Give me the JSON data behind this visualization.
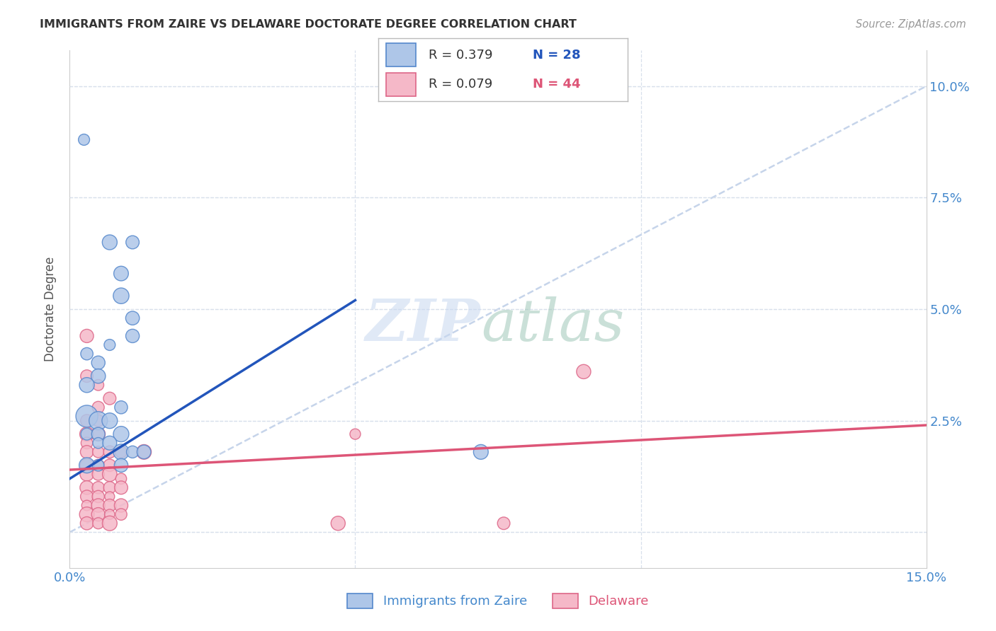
{
  "title": "IMMIGRANTS FROM ZAIRE VS DELAWARE DOCTORATE DEGREE CORRELATION CHART",
  "source": "Source: ZipAtlas.com",
  "ylabel_label": "Doctorate Degree",
  "legend_label_blue": "Immigrants from Zaire",
  "legend_label_pink": "Delaware",
  "legend_blue_r": "R = 0.379",
  "legend_blue_n": "N = 28",
  "legend_pink_r": "R = 0.079",
  "legend_pink_n": "N = 44",
  "xlim": [
    0.0,
    0.15
  ],
  "ylim": [
    -0.008,
    0.108
  ],
  "blue_scatter": [
    [
      0.0025,
      0.088
    ],
    [
      0.007,
      0.065
    ],
    [
      0.011,
      0.065
    ],
    [
      0.009,
      0.058
    ],
    [
      0.009,
      0.053
    ],
    [
      0.011,
      0.048
    ],
    [
      0.011,
      0.044
    ],
    [
      0.007,
      0.042
    ],
    [
      0.003,
      0.04
    ],
    [
      0.005,
      0.038
    ],
    [
      0.005,
      0.035
    ],
    [
      0.003,
      0.033
    ],
    [
      0.009,
      0.028
    ],
    [
      0.003,
      0.026
    ],
    [
      0.005,
      0.025
    ],
    [
      0.007,
      0.025
    ],
    [
      0.003,
      0.022
    ],
    [
      0.005,
      0.022
    ],
    [
      0.009,
      0.022
    ],
    [
      0.005,
      0.02
    ],
    [
      0.007,
      0.02
    ],
    [
      0.009,
      0.018
    ],
    [
      0.011,
      0.018
    ],
    [
      0.013,
      0.018
    ],
    [
      0.003,
      0.015
    ],
    [
      0.005,
      0.015
    ],
    [
      0.009,
      0.015
    ],
    [
      0.072,
      0.018
    ]
  ],
  "pink_scatter": [
    [
      0.003,
      0.044
    ],
    [
      0.003,
      0.035
    ],
    [
      0.005,
      0.033
    ],
    [
      0.007,
      0.03
    ],
    [
      0.005,
      0.028
    ],
    [
      0.003,
      0.025
    ],
    [
      0.005,
      0.025
    ],
    [
      0.003,
      0.022
    ],
    [
      0.005,
      0.022
    ],
    [
      0.003,
      0.02
    ],
    [
      0.003,
      0.018
    ],
    [
      0.005,
      0.018
    ],
    [
      0.007,
      0.018
    ],
    [
      0.009,
      0.018
    ],
    [
      0.003,
      0.015
    ],
    [
      0.005,
      0.015
    ],
    [
      0.007,
      0.015
    ],
    [
      0.003,
      0.013
    ],
    [
      0.005,
      0.013
    ],
    [
      0.007,
      0.013
    ],
    [
      0.009,
      0.012
    ],
    [
      0.003,
      0.01
    ],
    [
      0.005,
      0.01
    ],
    [
      0.007,
      0.01
    ],
    [
      0.009,
      0.01
    ],
    [
      0.003,
      0.008
    ],
    [
      0.005,
      0.008
    ],
    [
      0.007,
      0.008
    ],
    [
      0.003,
      0.006
    ],
    [
      0.005,
      0.006
    ],
    [
      0.007,
      0.006
    ],
    [
      0.009,
      0.006
    ],
    [
      0.003,
      0.004
    ],
    [
      0.005,
      0.004
    ],
    [
      0.007,
      0.004
    ],
    [
      0.009,
      0.004
    ],
    [
      0.003,
      0.002
    ],
    [
      0.005,
      0.002
    ],
    [
      0.007,
      0.002
    ],
    [
      0.013,
      0.018
    ],
    [
      0.09,
      0.036
    ],
    [
      0.076,
      0.002
    ],
    [
      0.047,
      0.002
    ],
    [
      0.05,
      0.022
    ]
  ],
  "blue_color": "#aec6e8",
  "pink_color": "#f5b8c8",
  "blue_edge_color": "#5588cc",
  "pink_edge_color": "#dd6688",
  "blue_line_color": "#2255bb",
  "pink_line_color": "#dd5577",
  "trend_line_color": "#c0d0e8",
  "background_color": "#ffffff",
  "grid_color": "#d8e0ec",
  "blue_trend_x": [
    0.0,
    0.05
  ],
  "blue_trend_y": [
    0.012,
    0.052
  ],
  "pink_trend_x": [
    0.0,
    0.15
  ],
  "pink_trend_y": [
    0.014,
    0.024
  ],
  "watermark_zip_color": "#c8d8f0",
  "watermark_atlas_color": "#a0c8b8"
}
